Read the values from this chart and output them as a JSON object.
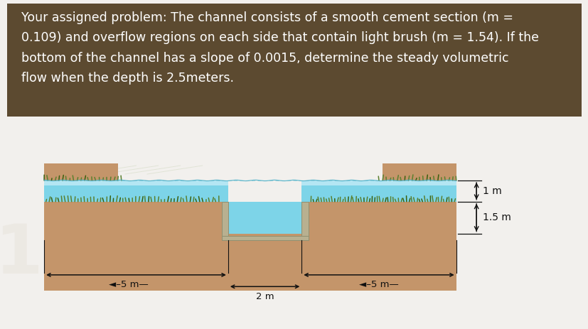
{
  "title_box_color": "#5c4a30",
  "title_text_color": "#ffffff",
  "title_text": "Your assigned problem: The channel consists of a smooth cement section (m =\n0.109) and overflow regions on each side that contain light brush (m = 1.54). If the\nbottom of the channel has a slope of 0.0015, determine the steady volumetric\nflow when the depth is 2.5meters.",
  "page_bg": "#f2f0ed",
  "diagram_bg": "#ffffff",
  "soil_color": "#c4956a",
  "soil_dark": "#a87848",
  "water_color": "#7dd4e8",
  "water_top_color": "#cceef8",
  "grass_color": "#5a8030",
  "grass_dark": "#3a6010",
  "cement_color": "#b8b090",
  "cement_edge": "#909070",
  "dim_color": "#111111",
  "label_1m": "1 m",
  "label_15m": "1.5 m",
  "label_5m_left": "-5 m—",
  "label_5m_right": "-5 m—",
  "label_2m": "2 m"
}
